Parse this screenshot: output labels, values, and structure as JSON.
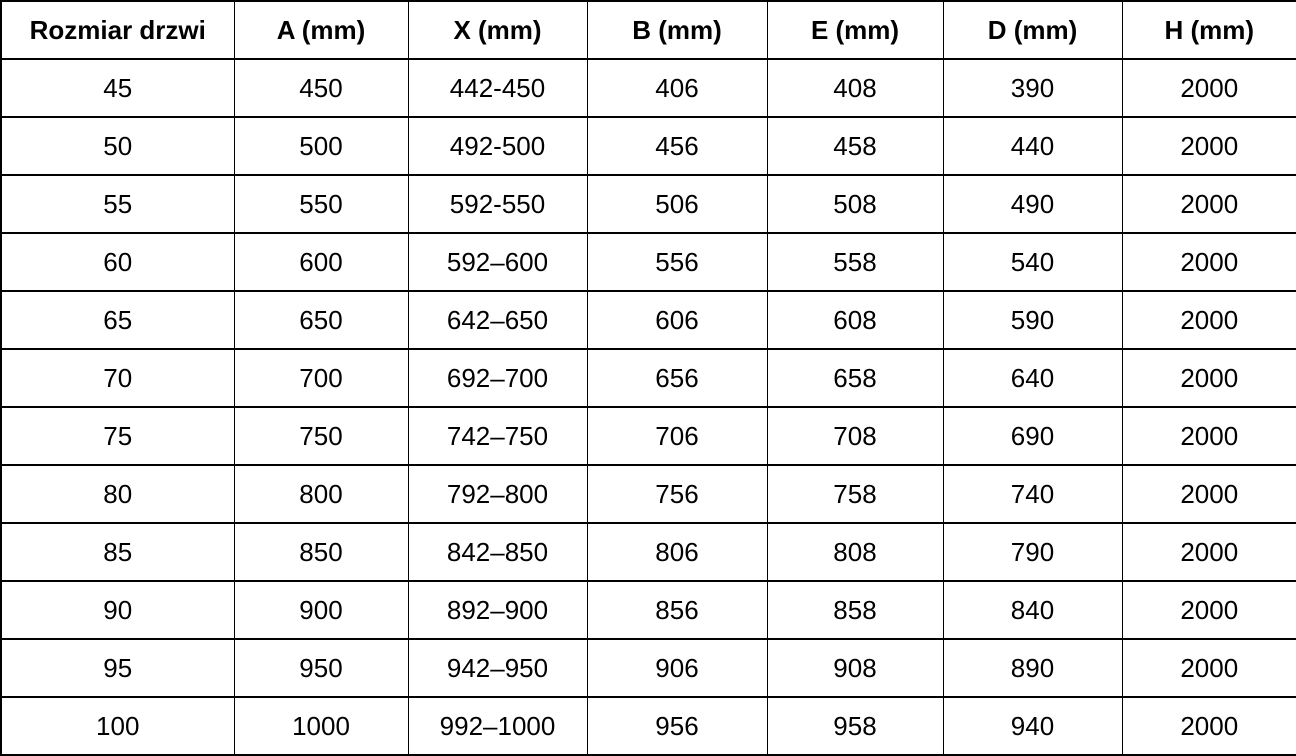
{
  "chart_data": {
    "type": "table",
    "columns": [
      "Rozmiar drzwi",
      "A (mm)",
      "X (mm)",
      "B (mm)",
      "E (mm)",
      "D (mm)",
      "H (mm)"
    ],
    "rows": [
      [
        "45",
        "450",
        "442-450",
        "406",
        "408",
        "390",
        "2000"
      ],
      [
        "50",
        "500",
        "492-500",
        "456",
        "458",
        "440",
        "2000"
      ],
      [
        "55",
        "550",
        "592-550",
        "506",
        "508",
        "490",
        "2000"
      ],
      [
        "60",
        "600",
        "592–600",
        "556",
        "558",
        "540",
        "2000"
      ],
      [
        "65",
        "650",
        "642–650",
        "606",
        "608",
        "590",
        "2000"
      ],
      [
        "70",
        "700",
        "692–700",
        "656",
        "658",
        "640",
        "2000"
      ],
      [
        "75",
        "750",
        "742–750",
        "706",
        "708",
        "690",
        "2000"
      ],
      [
        "80",
        "800",
        "792–800",
        "756",
        "758",
        "740",
        "2000"
      ],
      [
        "85",
        "850",
        "842–850",
        "806",
        "808",
        "790",
        "2000"
      ],
      [
        "90",
        "900",
        "892–900",
        "856",
        "858",
        "840",
        "2000"
      ],
      [
        "95",
        "950",
        "942–950",
        "906",
        "908",
        "890",
        "2000"
      ],
      [
        "100",
        "1000",
        "992–1000",
        "956",
        "958",
        "940",
        "2000"
      ]
    ],
    "header_bold": true,
    "text_color": "#000000",
    "border_color": "#000000",
    "background_color": "#ffffff",
    "grid": "on",
    "layout": "full-bleed table, centered cell text, no title or caption visible"
  }
}
